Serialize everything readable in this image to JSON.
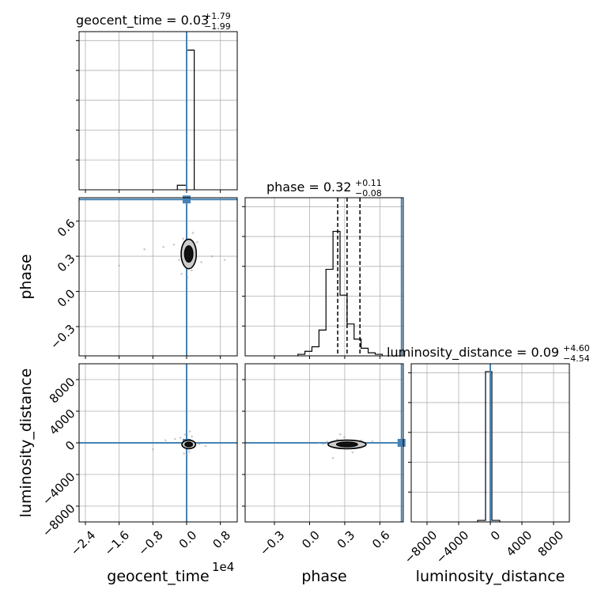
{
  "chart_data": {
    "type": "corner",
    "parameters": [
      "geocent_time",
      "phase",
      "luminosity_distance"
    ],
    "truth_color": "#4682b4",
    "truths": {
      "geocent_time": 0.0,
      "phase": 0.785,
      "luminosity_distance": 0.0
    },
    "titles": [
      {
        "text": "geocent_time = 0.03",
        "plus": "+1.79",
        "minus": "−1.99"
      },
      {
        "text": "phase = 0.32",
        "plus": "+0.11",
        "minus": "−0.08"
      },
      {
        "text": "luminosity_distance = 0.09",
        "plus": "+4.60",
        "minus": "−4.54"
      }
    ],
    "xlabels": {
      "geocent_time": "geocent_time",
      "phase": "phase",
      "luminosity_distance": "luminosity_distance"
    },
    "ylabels": {
      "phase": "phase",
      "luminosity_distance": "luminosity_distance"
    },
    "x_offset_text": "1e4",
    "ranges": {
      "geocent_time": [
        -2.55,
        1.2
      ],
      "phase": [
        -0.55,
        0.8
      ],
      "luminosity_distance": [
        -10000,
        10000
      ]
    },
    "ticks": {
      "geocent_time": {
        "values": [
          -2.4,
          -1.6,
          -0.8,
          0.0,
          0.8
        ],
        "labels": [
          "−2.4",
          "−1.6",
          "−0.8",
          "0.0",
          "0.8"
        ]
      },
      "phase": {
        "values": [
          -0.3,
          0.0,
          0.3,
          0.6
        ],
        "labels": [
          "−0.3",
          "0.0",
          "0.3",
          "0.6"
        ]
      },
      "luminosity_distance": {
        "values": [
          -8000,
          -4000,
          0,
          4000,
          8000
        ],
        "labels": [
          "−8000",
          "−4000",
          "0",
          "4000",
          "8000"
        ]
      }
    },
    "histograms": {
      "geocent_time": {
        "bins": [
          {
            "x0": -0.22,
            "x1": 0.0,
            "y": 0.03
          },
          {
            "x0": 0.0,
            "x1": 0.18,
            "y": 0.92
          }
        ],
        "ymax": 1.0,
        "quantile_lines": [
          0.0
        ]
      },
      "phase": {
        "bin_start": -0.1,
        "bin_width": 0.06,
        "counts": [
          0.01,
          0.03,
          0.06,
          0.17,
          0.57,
          0.82,
          0.4,
          0.21,
          0.11,
          0.05,
          0.02,
          0.01
        ],
        "ymax": 1.0,
        "quantile_lines": [
          0.24,
          0.32,
          0.43
        ]
      },
      "luminosity_distance": {
        "bins": [
          {
            "x0": -1600,
            "x1": -600,
            "y": 0.01
          },
          {
            "x0": -600,
            "x1": 200,
            "y": 0.99
          },
          {
            "x0": 200,
            "x1": 1200,
            "y": 0.01
          }
        ],
        "ymax": 1.0,
        "quantile_lines": [
          0.0
        ]
      }
    },
    "scatter_samples": [
      {
        "x": 0.05,
        "y": 0.32
      },
      {
        "x": -0.05,
        "y": 0.3
      },
      {
        "x": 0.1,
        "y": 0.36
      },
      {
        "x": -0.18,
        "y": 0.27
      },
      {
        "x": 0.22,
        "y": 0.34
      },
      {
        "x": -0.3,
        "y": 0.4
      },
      {
        "x": 0.35,
        "y": 0.25
      },
      {
        "x": -0.55,
        "y": 0.38
      },
      {
        "x": 0.6,
        "y": 0.3
      },
      {
        "x": -1.0,
        "y": 0.36
      },
      {
        "x": 0.9,
        "y": 0.27
      },
      {
        "x": -1.6,
        "y": 0.22
      },
      {
        "x": 0.12,
        "y": 0.18
      },
      {
        "x": -0.08,
        "y": 0.45
      },
      {
        "x": 0.02,
        "y": 0.12
      },
      {
        "x": 0.15,
        "y": 0.5
      },
      {
        "x": -0.12,
        "y": 0.15
      },
      {
        "x": 0.25,
        "y": 0.42
      }
    ],
    "contours": {
      "geocent_time-phase": {
        "center": [
          0.05,
          0.32
        ],
        "sx": 0.1,
        "sy": 0.07
      },
      "geocent_time-luminosity_distance": {
        "center": [
          0.05,
          -200
        ],
        "sx": 0.09,
        "sy": 300
      },
      "phase-luminosity_distance": {
        "center": [
          0.32,
          -200
        ],
        "sx": 0.09,
        "sy": 300
      }
    }
  }
}
